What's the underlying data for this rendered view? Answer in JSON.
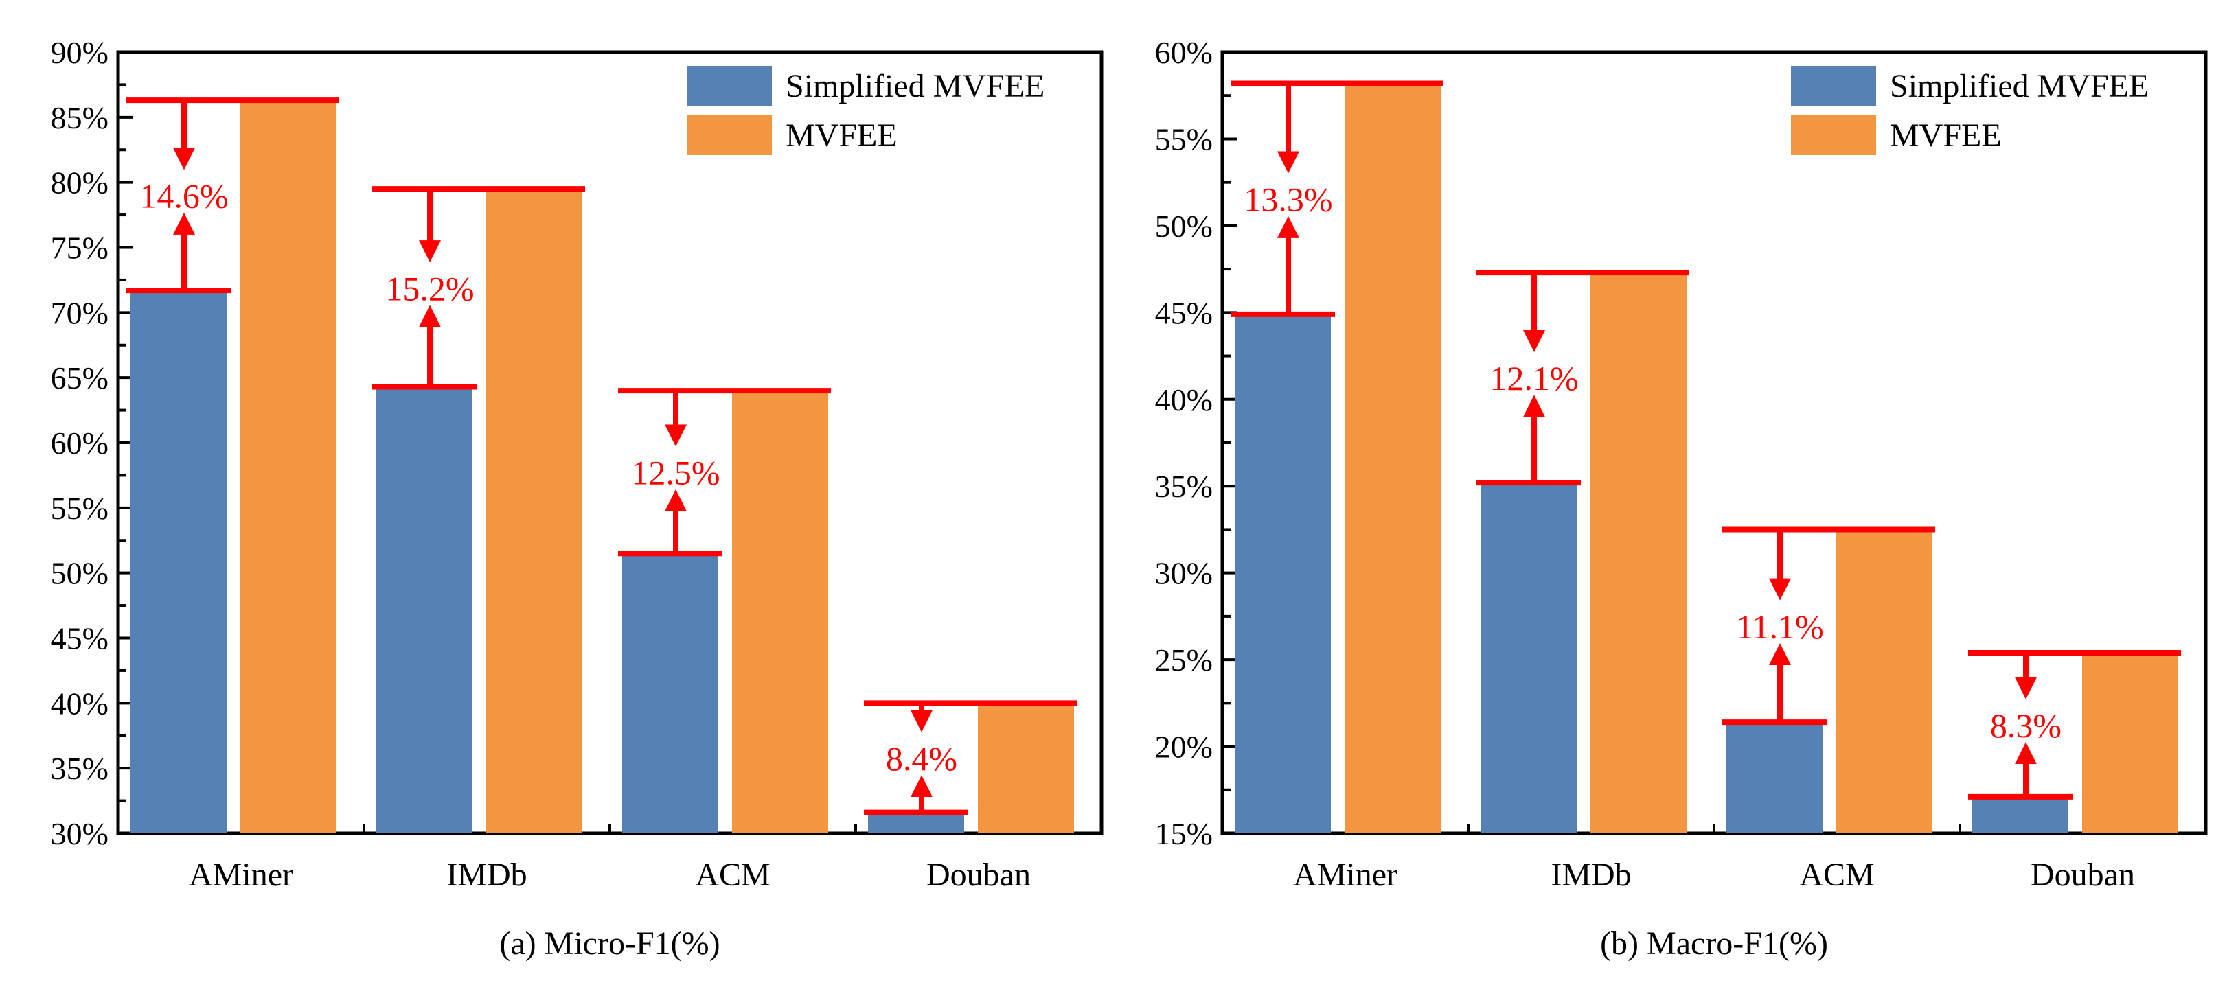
{
  "colors": {
    "simplified": "#5581b5",
    "full": "#f29642",
    "annotation": "#ff0000",
    "axis": "#000000"
  },
  "chart_data": [
    {
      "type": "bar",
      "id": "micro",
      "title": "(a) Micro-F1(%)",
      "xlabel": "",
      "ylabel": "",
      "ylim": [
        30,
        90
      ],
      "yticks": [
        30,
        35,
        40,
        45,
        50,
        55,
        60,
        65,
        70,
        75,
        80,
        85,
        90
      ],
      "tick_suffix": "%",
      "categories": [
        "AMiner",
        "IMDb",
        "ACM",
        "Douban"
      ],
      "series": [
        {
          "name": "Simplified MVFEE",
          "values": [
            71.7,
            64.3,
            51.5,
            31.6
          ]
        },
        {
          "name": "MVFEE",
          "values": [
            86.3,
            79.5,
            64.0,
            40.0
          ]
        }
      ],
      "annotations": [
        "14.6%",
        "15.2%",
        "12.5%",
        "8.4%"
      ],
      "legend": "top-right",
      "grid": false
    },
    {
      "type": "bar",
      "id": "macro",
      "title": "(b) Macro-F1(%)",
      "xlabel": "",
      "ylabel": "",
      "ylim": [
        15,
        60
      ],
      "yticks": [
        15,
        20,
        25,
        30,
        35,
        40,
        45,
        50,
        55,
        60
      ],
      "tick_suffix": "%",
      "categories": [
        "AMiner",
        "IMDb",
        "ACM",
        "Douban"
      ],
      "series": [
        {
          "name": "Simplified MVFEE",
          "values": [
            44.9,
            35.2,
            21.4,
            17.1
          ]
        },
        {
          "name": "MVFEE",
          "values": [
            58.2,
            47.3,
            32.5,
            25.4
          ]
        }
      ],
      "annotations": [
        "13.3%",
        "12.1%",
        "11.1%",
        "8.3%"
      ],
      "legend": "top-right",
      "grid": false
    }
  ]
}
